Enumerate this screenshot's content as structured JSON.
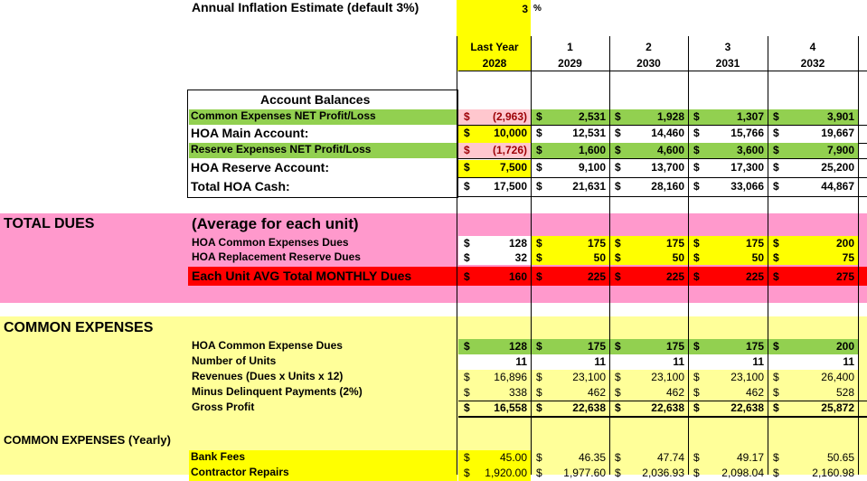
{
  "inflation": {
    "label": "Annual Inflation Estimate (default 3%)",
    "value": "3",
    "unit": "%"
  },
  "years": [
    {
      "num": "Last Year",
      "year": "2028"
    },
    {
      "num": "1",
      "year": "2029"
    },
    {
      "num": "2",
      "year": "2030"
    },
    {
      "num": "3",
      "year": "2031"
    },
    {
      "num": "4",
      "year": "2032"
    }
  ],
  "account_balances": {
    "title": "Account Balances",
    "rows": [
      {
        "label": "Common Expenses NET Profit/Loss",
        "values": [
          "(2,963)",
          "2,531",
          "1,928",
          "1,307",
          "3,901"
        ]
      },
      {
        "label": "HOA Main Account:",
        "values": [
          "10,000",
          "12,531",
          "14,460",
          "15,766",
          "19,667"
        ]
      },
      {
        "label": "Reserve Expenses NET Profit/Loss",
        "values": [
          "(1,726)",
          "1,600",
          "4,600",
          "3,600",
          "7,900"
        ]
      },
      {
        "label": "HOA Reserve Account:",
        "values": [
          "7,500",
          "9,100",
          "13,700",
          "17,300",
          "25,200"
        ]
      },
      {
        "label": "Total HOA Cash:",
        "values": [
          "17,500",
          "21,631",
          "28,160",
          "33,066",
          "44,867"
        ]
      }
    ]
  },
  "total_dues": {
    "section": "TOTAL DUES",
    "subtitle": "(Average for each unit)",
    "rows": [
      {
        "label": "HOA Common Expenses Dues",
        "values": [
          "128",
          "175",
          "175",
          "175",
          "200"
        ]
      },
      {
        "label": "HOA Replacement Reserve Dues",
        "values": [
          "32",
          "50",
          "50",
          "50",
          "75"
        ]
      }
    ],
    "total": {
      "label": "Each Unit AVG Total MONTHLY Dues",
      "values": [
        "160",
        "225",
        "225",
        "225",
        "275"
      ]
    }
  },
  "common_expenses": {
    "section": "COMMON EXPENSES",
    "rows": [
      {
        "label": "HOA Common Expense Dues",
        "values": [
          "128",
          "175",
          "175",
          "175",
          "200"
        ]
      },
      {
        "label": "Number of Units",
        "values": [
          "11",
          "11",
          "11",
          "11",
          "11"
        ]
      },
      {
        "label": "Revenues (Dues x Units x 12)",
        "values": [
          "16,896",
          "23,100",
          "23,100",
          "23,100",
          "26,400"
        ]
      },
      {
        "label": "Minus Delinquent Payments (2%)",
        "values": [
          "338",
          "462",
          "462",
          "462",
          "528"
        ]
      },
      {
        "label": "Gross Profit",
        "values": [
          "16,558",
          "22,638",
          "22,638",
          "22,638",
          "25,872"
        ]
      }
    ]
  },
  "yearly": {
    "section": "COMMON EXPENSES (Yearly)",
    "rows": [
      {
        "label": "Bank Fees",
        "values": [
          "45.00",
          "46.35",
          "47.74",
          "49.17",
          "50.65"
        ]
      },
      {
        "label": "Contractor Repairs",
        "values": [
          "1,920.00",
          "1,977.60",
          "2,036.93",
          "2,098.04",
          "2,160.98"
        ]
      }
    ]
  },
  "currency": "$",
  "colors": {
    "yellow": "#ffff00",
    "pale_yellow": "#ffff99",
    "pink": "#ff99cc",
    "green": "#92d050",
    "red": "#ff0000",
    "light_red": "#ffc7ce"
  }
}
